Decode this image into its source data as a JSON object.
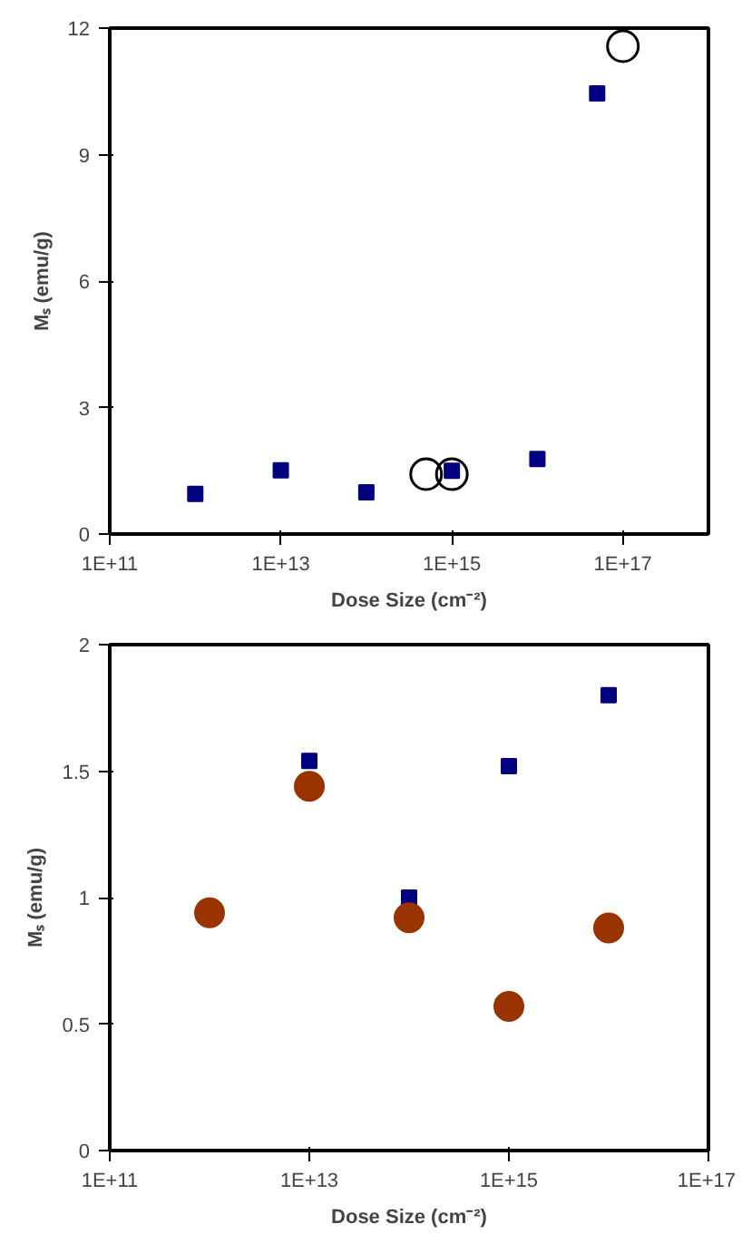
{
  "chart_data": [
    {
      "type": "scatter",
      "xlabel": "Dose Size (cm⁻²)",
      "ylabel": "Mₛ (emu/g)",
      "log": "x",
      "grid": false,
      "xlim": [
        100000000000.0,
        1e+18
      ],
      "xticks": [
        {
          "value": 100000000000.0,
          "label": "1E+11"
        },
        {
          "value": 10000000000000.0,
          "label": "1E+13"
        },
        {
          "value": 1000000000000000.0,
          "label": "1E+15"
        },
        {
          "value": 1e+17,
          "label": "1E+17"
        }
      ],
      "ylim": [
        0,
        12
      ],
      "yticks": [
        0,
        3,
        6,
        9,
        12
      ],
      "series": [
        {
          "color": "#000080",
          "marker": "square",
          "x": [
            1000000000000.0,
            10000000000000.0,
            100000000000000.0,
            1000000000000000.0,
            1e+16,
            5e+16
          ],
          "values": [
            0.95,
            1.51,
            0.99,
            1.5,
            1.78,
            10.45
          ]
        },
        {
          "color": "#000000",
          "marker": "open_circle",
          "x": [
            500000000000000.0,
            1000000000000000.0,
            1e+17
          ],
          "values": [
            1.42,
            1.42,
            11.57
          ]
        }
      ]
    },
    {
      "type": "scatter",
      "xlabel": "Dose Size (cm⁻²)",
      "ylabel": "Mₛ (emu/g)",
      "log": "x",
      "grid": false,
      "xlim": [
        100000000000.0,
        1e+17
      ],
      "xticks": [
        {
          "value": 100000000000.0,
          "label": "1E+11"
        },
        {
          "value": 10000000000000.0,
          "label": "1E+13"
        },
        {
          "value": 1000000000000000.0,
          "label": "1E+15"
        },
        {
          "value": 1e+17,
          "label": "1E+17"
        }
      ],
      "ylim": [
        0,
        2
      ],
      "yticks": [
        0,
        0.5,
        1,
        1.5,
        2
      ],
      "series": [
        {
          "color": "#000080",
          "marker": "square",
          "x": [
            10000000000000.0,
            100000000000000.0,
            1000000000000000.0,
            1e+16
          ],
          "values": [
            1.54,
            1.0,
            1.52,
            1.8
          ]
        },
        {
          "color": "#993300",
          "marker": "circle",
          "x": [
            1000000000000.0,
            10000000000000.0,
            100000000000000.0,
            1000000000000000.0,
            1e+16
          ],
          "values": [
            0.94,
            1.44,
            0.92,
            0.57,
            0.88
          ]
        }
      ]
    }
  ]
}
